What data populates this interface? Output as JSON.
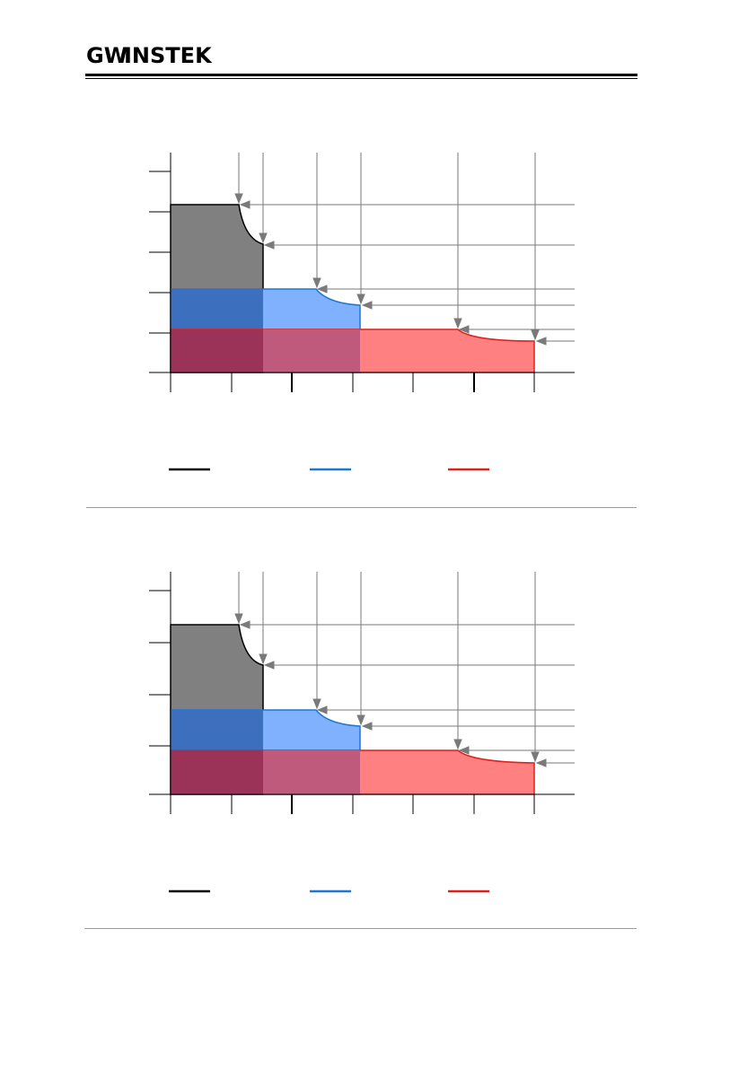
{
  "header": {
    "page_number": "",
    "brand": "GW INSTEK"
  },
  "colors": {
    "black_region": "#808080",
    "blue_region": "#7fb1ff",
    "red_region": "#ff8080",
    "overlap_dark_blue": "#3d6fbf",
    "overlap_dark_red": "#9b3258",
    "overlap_mid_red": "#c05a7d",
    "black_line": "#000000",
    "blue_line": "#1f77d4",
    "red_line": "#e0201a",
    "guide_line": "#7a7a7a",
    "axis": "#000000",
    "separator": "#999999"
  },
  "legend": [
    {
      "series": "black",
      "label": ""
    },
    {
      "series": "blue",
      "label": ""
    },
    {
      "series": "red",
      "label": ""
    }
  ],
  "figures": [
    {
      "id": "figure-1"
    },
    {
      "id": "figure-2"
    }
  ]
}
